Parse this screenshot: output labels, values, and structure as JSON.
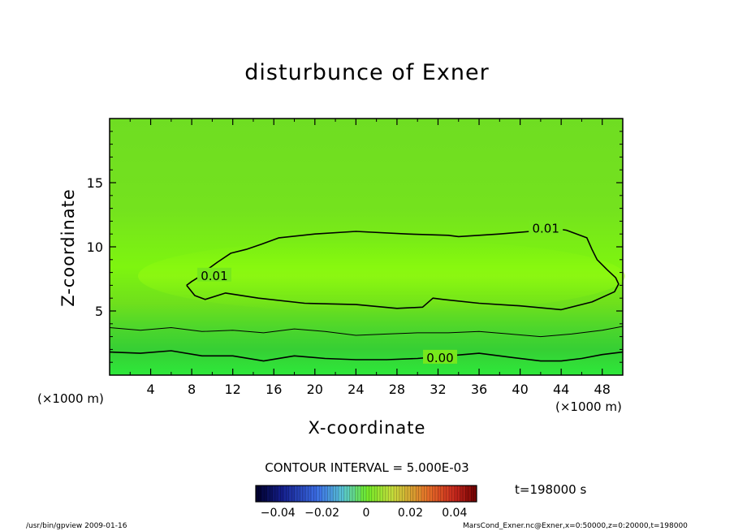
{
  "chart_data": {
    "type": "heatmap",
    "title": "disturbunce of Exner",
    "xlabel": "X-coordinate",
    "ylabel": "Z-coordinate",
    "x_unit": "(×1000 m)",
    "xlim": [
      0,
      50
    ],
    "ylim": [
      0,
      20
    ],
    "x_ticks": [
      4,
      8,
      12,
      16,
      20,
      24,
      28,
      32,
      36,
      40,
      44,
      48
    ],
    "y_ticks": [
      5,
      10,
      15
    ],
    "contour_interval_label": "CONTOUR INTERVAL = 5.000E-03",
    "time_label": "t=198000 s",
    "colorbar": {
      "range": [
        -0.05,
        0.05
      ],
      "tick_values": [
        -0.04,
        -0.02,
        0,
        0.02,
        0.04
      ],
      "tick_labels": [
        "−0.04",
        "−0.02",
        "0",
        "0.02",
        "0.04"
      ]
    },
    "contours": [
      {
        "level_label": "0.00",
        "x": [
          0,
          3,
          6,
          9,
          12,
          15,
          18,
          21,
          24,
          27,
          30,
          33,
          36,
          39,
          42,
          44,
          46,
          48,
          50
        ],
        "z": [
          1.8,
          1.7,
          1.9,
          1.5,
          1.5,
          1.1,
          1.5,
          1.3,
          1.2,
          1.2,
          1.3,
          1.5,
          1.7,
          1.4,
          1.1,
          1.1,
          1.3,
          1.6,
          1.8
        ]
      },
      {
        "level_label": "0.005",
        "x": [
          0,
          3,
          6,
          9,
          12,
          15,
          18,
          21,
          24,
          27,
          30,
          33,
          36,
          39,
          42,
          45,
          48,
          50
        ],
        "z": [
          3.7,
          3.5,
          3.7,
          3.4,
          3.5,
          3.3,
          3.6,
          3.4,
          3.1,
          3.2,
          3.3,
          3.3,
          3.4,
          3.2,
          3.0,
          3.2,
          3.5,
          3.8
        ]
      },
      {
        "level_label": "0.01",
        "x": [
          7.5,
          8.3,
          9.3,
          11.3,
          14.5,
          19,
          24,
          28,
          30.5,
          31.5,
          32.5,
          36,
          40,
          44,
          47,
          49.2,
          49.6,
          49.3,
          48.5,
          47.5,
          47,
          46.5,
          44.5,
          42.5,
          41.8,
          41,
          38,
          34,
          33,
          29,
          24,
          20,
          16.5,
          14.8,
          13.3,
          11.8,
          10.5,
          9.3,
          8.6,
          8.0,
          7.5
        ],
        "z": [
          7.0,
          6.2,
          5.9,
          6.4,
          6.0,
          5.6,
          5.5,
          5.2,
          5.3,
          6.0,
          5.9,
          5.6,
          5.4,
          5.1,
          5.7,
          6.5,
          7.1,
          7.6,
          8.2,
          9.0,
          9.8,
          10.7,
          11.3,
          11.5,
          11.7,
          11.2,
          11.0,
          10.8,
          10.9,
          11.0,
          11.2,
          11.0,
          10.7,
          10.2,
          9.8,
          9.5,
          8.8,
          8.1,
          7.6,
          7.3,
          7.0
        ]
      }
    ],
    "contour_labels": [
      {
        "text": "0.00",
        "x": 32.2,
        "z": 1.4
      },
      {
        "text": "0.01",
        "x": 42.5,
        "z": 11.5
      },
      {
        "text": "0.01",
        "x": 10.2,
        "z": 7.8
      }
    ]
  },
  "footer": {
    "left": "/usr/bin/gpview   2009-01-16",
    "right": "MarsCond_Exner.nc@Exner,x=0:50000,z=0:20000,t=198000"
  }
}
